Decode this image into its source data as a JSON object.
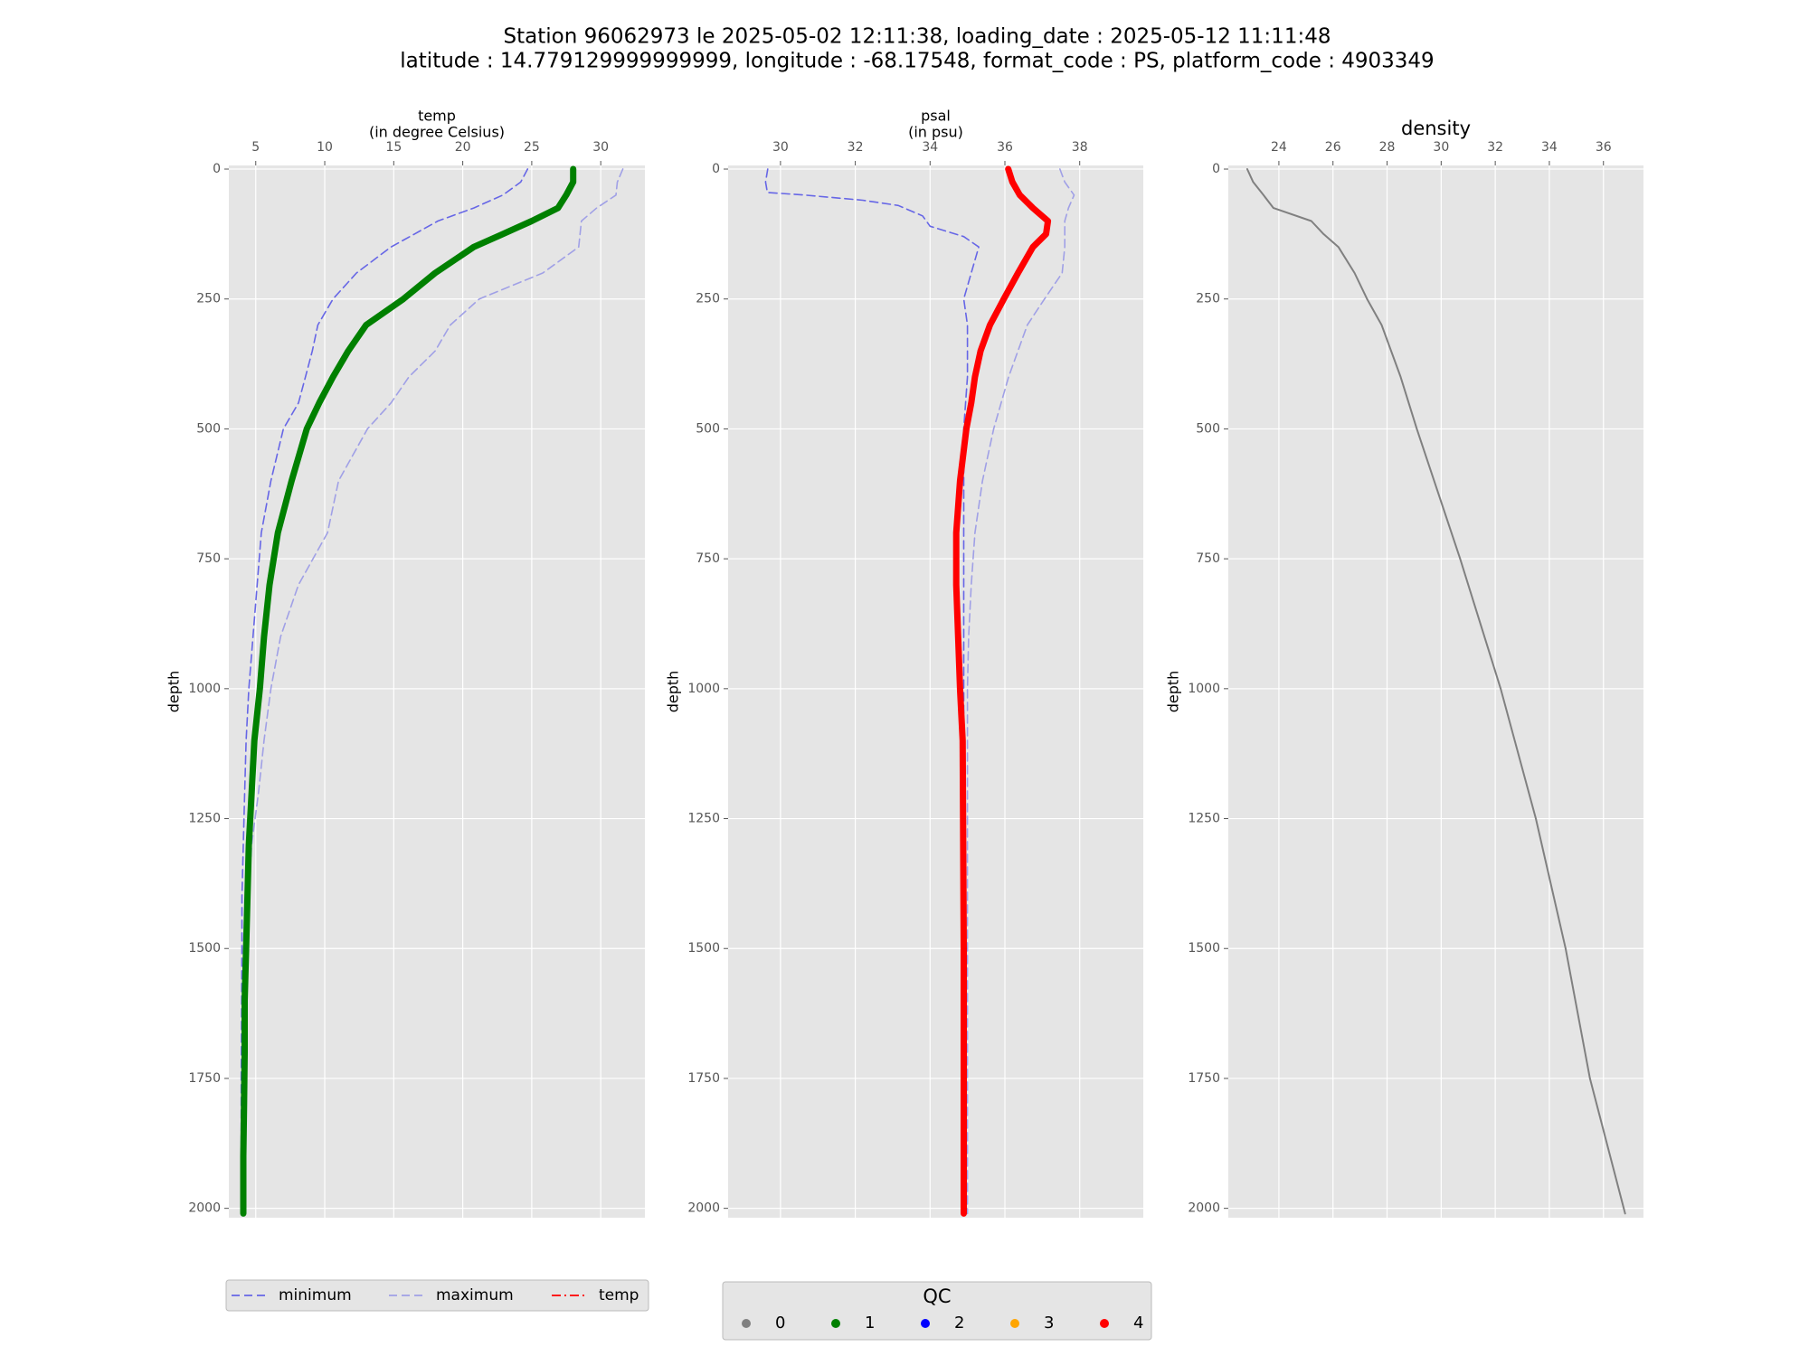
{
  "title": [
    "Station 96062973 le 2025-05-02 12:11:38, loading_date : 2025-05-12 11:11:48",
    "latitude : 14.779129999999999, longitude : -68.17548, format_code : PS, platform_code : 4903349"
  ],
  "qc_legend": {
    "title": "QC",
    "labels": [
      0,
      1,
      2,
      3,
      4
    ],
    "colors": [
      "#808080",
      "#008000",
      "#0000ff",
      "#ffa500",
      "#ff0000"
    ]
  },
  "chart_data": [
    {
      "type": "line",
      "xlabel": [
        "temp",
        "(in degree Celsius)"
      ],
      "ylabel": "depth",
      "xlim": [
        3.05,
        33.2
      ],
      "xticks": [
        5,
        10,
        15,
        20,
        25,
        30
      ],
      "ylim": [
        -7,
        2018
      ],
      "y_inverted": true,
      "yticks": [
        0,
        250,
        500,
        750,
        1000,
        1250,
        1500,
        1750,
        2000
      ],
      "grid": true,
      "series": [
        {
          "name": "minimum",
          "color": "#6666e6",
          "style": "dashed",
          "depth": [
            0,
            25,
            50,
            75,
            100,
            125,
            150,
            200,
            250,
            300,
            350,
            400,
            450,
            500,
            600,
            700,
            800,
            900,
            1000,
            1100,
            1200,
            1300,
            1400,
            1500,
            1750,
            2010
          ],
          "values": [
            24.7,
            24.2,
            22.9,
            20.8,
            18.2,
            16.5,
            14.8,
            12.3,
            10.6,
            9.5,
            9.1,
            8.6,
            8.1,
            7.0,
            6.1,
            5.4,
            5.1,
            4.8,
            4.5,
            4.3,
            4.2,
            4.1,
            4.0,
            4.0,
            3.95,
            3.95
          ]
        },
        {
          "name": "maximum",
          "color": "#a0a0e6",
          "style": "dashed",
          "depth": [
            0,
            25,
            50,
            75,
            100,
            150,
            200,
            250,
            300,
            350,
            400,
            450,
            500,
            600,
            700,
            800,
            900,
            1000,
            1100,
            1200,
            1300,
            1400,
            1500,
            1750,
            2010
          ],
          "values": [
            31.6,
            31.2,
            31.1,
            29.7,
            28.6,
            28.4,
            25.8,
            21.2,
            19.1,
            18.0,
            16.1,
            14.8,
            13.1,
            11.0,
            10.2,
            8.1,
            6.8,
            6.1,
            5.6,
            5.2,
            4.7,
            4.5,
            4.3,
            4.2,
            4.15
          ]
        },
        {
          "name": "temp",
          "qc": 1,
          "legend_color": "#ff0000",
          "legend_style": "dashdot",
          "depth": [
            0,
            25,
            50,
            75,
            100,
            125,
            150,
            200,
            250,
            300,
            350,
            400,
            450,
            500,
            600,
            700,
            800,
            900,
            1000,
            1100,
            1200,
            1300,
            1400,
            1500,
            1600,
            1700,
            1800,
            1900,
            2010
          ],
          "values": [
            28.0,
            28.0,
            27.5,
            26.9,
            25.0,
            22.9,
            20.8,
            18.0,
            15.7,
            13.0,
            11.7,
            10.6,
            9.6,
            8.7,
            7.6,
            6.6,
            6.0,
            5.6,
            5.3,
            4.9,
            4.7,
            4.5,
            4.4,
            4.3,
            4.2,
            4.2,
            4.15,
            4.1,
            4.1
          ]
        }
      ]
    },
    {
      "type": "line",
      "xlabel": [
        "psal",
        "(in psu)"
      ],
      "ylabel": "depth",
      "xlim": [
        28.6,
        39.7
      ],
      "xticks": [
        30,
        32,
        34,
        36,
        38
      ],
      "ylim": [
        -7,
        2018
      ],
      "y_inverted": true,
      "yticks": [
        0,
        250,
        500,
        750,
        1000,
        1250,
        1500,
        1750,
        2000
      ],
      "grid": true,
      "series": [
        {
          "color": "#6666e6",
          "style": "dashed",
          "depth": [
            0,
            25,
            45,
            50,
            60,
            70,
            90,
            110,
            130,
            150,
            250,
            300,
            400,
            500,
            1000,
            2010
          ],
          "values": [
            29.66,
            29.6,
            29.65,
            30.65,
            32.2,
            33.15,
            33.8,
            34.0,
            34.9,
            35.3,
            34.9,
            35.0,
            35.0,
            34.9,
            34.9,
            34.9
          ]
        },
        {
          "color": "#a0a0e6",
          "style": "dashed",
          "depth": [
            0,
            25,
            50,
            75,
            100,
            150,
            200,
            250,
            300,
            400,
            500,
            600,
            700,
            800,
            900,
            1000,
            2010
          ],
          "values": [
            37.47,
            37.6,
            37.85,
            37.7,
            37.6,
            37.6,
            37.53,
            37.06,
            36.6,
            36.1,
            35.7,
            35.4,
            35.2,
            35.1,
            35.03,
            35.0,
            35.0
          ]
        },
        {
          "qc": 4,
          "depth": [
            0,
            25,
            50,
            75,
            100,
            125,
            150,
            200,
            250,
            300,
            350,
            400,
            450,
            500,
            600,
            700,
            800,
            900,
            1000,
            1100,
            1500,
            2010
          ],
          "values": [
            36.09,
            36.2,
            36.4,
            36.75,
            37.15,
            37.1,
            36.75,
            36.35,
            35.97,
            35.6,
            35.35,
            35.2,
            35.1,
            34.97,
            34.8,
            34.7,
            34.7,
            34.75,
            34.8,
            34.87,
            34.9,
            34.9
          ]
        }
      ]
    },
    {
      "type": "line",
      "title": "density",
      "ylabel": "depth",
      "xlim": [
        22.13,
        37.48
      ],
      "xticks": [
        24,
        26,
        28,
        30,
        32,
        34,
        36
      ],
      "ylim": [
        -7,
        2018
      ],
      "y_inverted": true,
      "yticks": [
        0,
        250,
        500,
        750,
        1000,
        1250,
        1500,
        1750,
        2000
      ],
      "grid": true,
      "series": [
        {
          "color": "#808080",
          "depth": [
            0,
            25,
            50,
            75,
            100,
            125,
            150,
            200,
            250,
            300,
            400,
            500,
            750,
            1000,
            1250,
            1500,
            1750,
            2010
          ],
          "values": [
            22.83,
            23.05,
            23.43,
            23.8,
            25.2,
            25.65,
            26.2,
            26.8,
            27.26,
            27.8,
            28.5,
            29.1,
            30.7,
            32.2,
            33.5,
            34.6,
            35.5,
            36.8
          ]
        }
      ]
    }
  ]
}
